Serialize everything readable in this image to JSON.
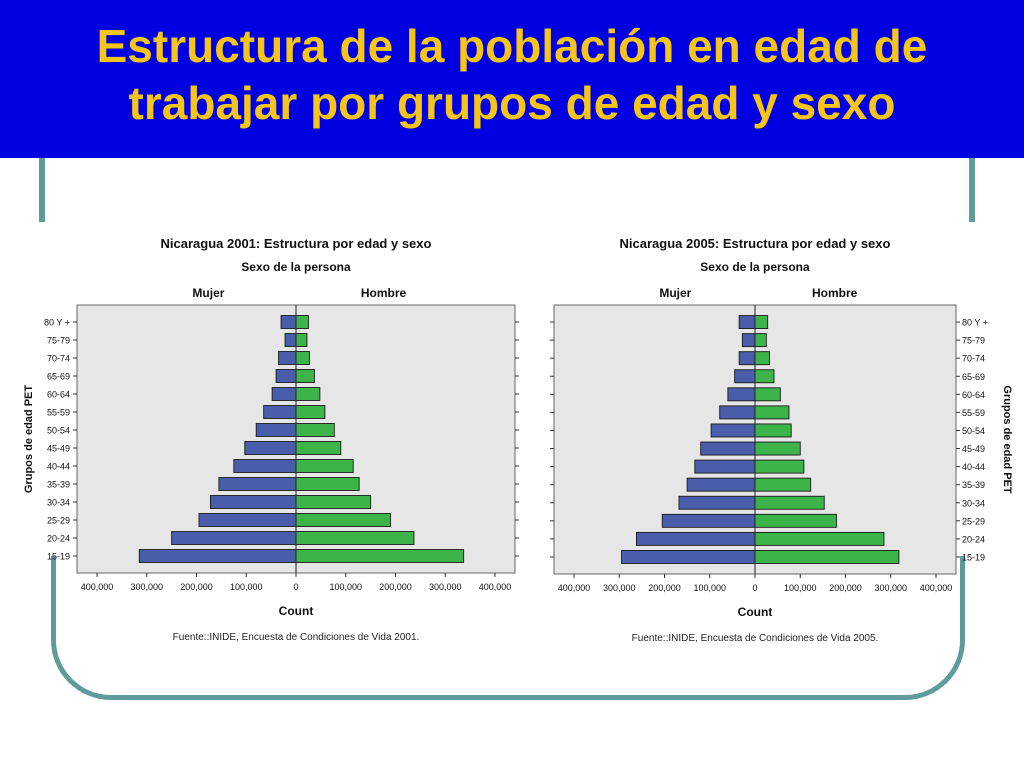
{
  "slide": {
    "title_line1": "Estructura de la población en edad de",
    "title_line2": "trabajar por grupos de edad y sexo"
  },
  "colors": {
    "header_bg": "#0000e0",
    "title_text": "#f5c518",
    "frame": "#5f9b9b",
    "mujer_bar": "#4a5dab",
    "hombre_bar": "#3cb44a",
    "plot_bg": "#e6e6e6"
  },
  "chart_data": [
    {
      "type": "bar",
      "orientation": "horizontal-population-pyramid",
      "title": "Nicaragua 2001: Estructura por edad y sexo",
      "subtitle": "Sexo de la persona",
      "xlabel": "Count",
      "ylabel": "Grupos de edad PET",
      "categories": [
        "80 Y +",
        "75-79",
        "70-74",
        "65-69",
        "60-64",
        "55-59",
        "50-54",
        "45-49",
        "40-44",
        "35-39",
        "30-34",
        "25-29",
        "20-24",
        "15-19"
      ],
      "series": [
        {
          "name": "Mujer",
          "values": [
            30000,
            22000,
            35000,
            40000,
            48000,
            65000,
            80000,
            103000,
            125000,
            155000,
            172000,
            195000,
            250000,
            315000
          ]
        },
        {
          "name": "Hombre",
          "values": [
            25000,
            22000,
            27000,
            37000,
            48000,
            58000,
            77000,
            90000,
            115000,
            127000,
            150000,
            190000,
            237000,
            337000
          ]
        }
      ],
      "x_ticks": [
        "400,000",
        "300,000",
        "200,000",
        "100,000",
        "0",
        "100,000",
        "200,000",
        "300,000",
        "400,000"
      ],
      "xlim": [
        -400000,
        400000
      ],
      "source": "Fuente::INIDE, Encuesta de Condiciones de Vida 2001."
    },
    {
      "type": "bar",
      "orientation": "horizontal-population-pyramid",
      "title": "Nicaragua 2005: Estructura por edad y sexo",
      "subtitle": "Sexo de la persona",
      "xlabel": "Count",
      "ylabel": "Grupos de edad PET",
      "categories": [
        "80 Y +",
        "75-79",
        "70-74",
        "65-69",
        "60-64",
        "55-59",
        "50-54",
        "45-49",
        "40-44",
        "35-39",
        "30-34",
        "25-29",
        "20-24",
        "15-19"
      ],
      "series": [
        {
          "name": "Mujer",
          "values": [
            35000,
            28000,
            35000,
            45000,
            60000,
            78000,
            97000,
            120000,
            133000,
            150000,
            168000,
            205000,
            262000,
            295000
          ]
        },
        {
          "name": "Hombre",
          "values": [
            28000,
            25000,
            32000,
            42000,
            56000,
            75000,
            80000,
            100000,
            108000,
            123000,
            153000,
            180000,
            285000,
            318000
          ]
        }
      ],
      "x_ticks": [
        "400,000",
        "300,000",
        "200,000",
        "100,000",
        "0",
        "100,000",
        "200,000",
        "300,000",
        "400,000"
      ],
      "xlim": [
        -400000,
        400000
      ],
      "source": "Fuente::INIDE, Encuesta de Condiciones de Vida 2005."
    }
  ]
}
